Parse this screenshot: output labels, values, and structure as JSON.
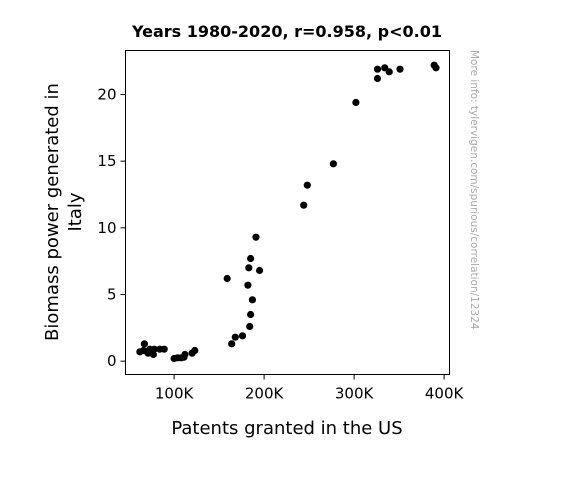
{
  "chart_data": {
    "type": "scatter",
    "title": "Years 1980-2020, r=0.958, p<0.01",
    "xlabel": "Patents granted in the US",
    "ylabel_lines": [
      "Biomass power generated in",
      "Italy"
    ],
    "xlim": [
      46000,
      406000
    ],
    "ylim": [
      -1,
      23.3
    ],
    "xticks": [
      {
        "value": 100000,
        "label": "100K"
      },
      {
        "value": 200000,
        "label": "200K"
      },
      {
        "value": 300000,
        "label": "300K"
      },
      {
        "value": 400000,
        "label": "400K"
      }
    ],
    "yticks": [
      {
        "value": 0,
        "label": "0"
      },
      {
        "value": 5,
        "label": "5"
      },
      {
        "value": 10,
        "label": "10"
      },
      {
        "value": 15,
        "label": "15"
      },
      {
        "value": 20,
        "label": "20"
      }
    ],
    "grid": false,
    "marker_color": "#000000",
    "points": [
      {
        "x": 62000,
        "y": 0.7
      },
      {
        "x": 66000,
        "y": 0.8
      },
      {
        "x": 67000,
        "y": 1.3
      },
      {
        "x": 71000,
        "y": 0.6
      },
      {
        "x": 73000,
        "y": 0.9
      },
      {
        "x": 76000,
        "y": 0.6
      },
      {
        "x": 77000,
        "y": 0.5
      },
      {
        "x": 78000,
        "y": 0.9
      },
      {
        "x": 84000,
        "y": 0.9
      },
      {
        "x": 89000,
        "y": 0.9
      },
      {
        "x": 100000,
        "y": 0.2
      },
      {
        "x": 104000,
        "y": 0.25
      },
      {
        "x": 108000,
        "y": 0.25
      },
      {
        "x": 111000,
        "y": 0.3
      },
      {
        "x": 112000,
        "y": 0.5
      },
      {
        "x": 120000,
        "y": 0.6
      },
      {
        "x": 123000,
        "y": 0.8
      },
      {
        "x": 159000,
        "y": 6.2
      },
      {
        "x": 164000,
        "y": 1.3
      },
      {
        "x": 168000,
        "y": 1.8
      },
      {
        "x": 176000,
        "y": 1.9
      },
      {
        "x": 182000,
        "y": 5.7
      },
      {
        "x": 183000,
        "y": 7.0
      },
      {
        "x": 184000,
        "y": 2.6
      },
      {
        "x": 185000,
        "y": 3.5
      },
      {
        "x": 185000,
        "y": 7.7
      },
      {
        "x": 187000,
        "y": 4.6
      },
      {
        "x": 191000,
        "y": 9.3
      },
      {
        "x": 195000,
        "y": 6.8
      },
      {
        "x": 244000,
        "y": 11.7
      },
      {
        "x": 248000,
        "y": 13.2
      },
      {
        "x": 277000,
        "y": 14.8
      },
      {
        "x": 302000,
        "y": 19.4
      },
      {
        "x": 326000,
        "y": 21.2
      },
      {
        "x": 326000,
        "y": 21.9
      },
      {
        "x": 334000,
        "y": 22.0
      },
      {
        "x": 339000,
        "y": 21.7
      },
      {
        "x": 351000,
        "y": 21.9
      },
      {
        "x": 389000,
        "y": 22.2
      },
      {
        "x": 391000,
        "y": 22.0
      }
    ]
  },
  "watermark": "More info: tylervigen.com/spurious/correlation/12324"
}
